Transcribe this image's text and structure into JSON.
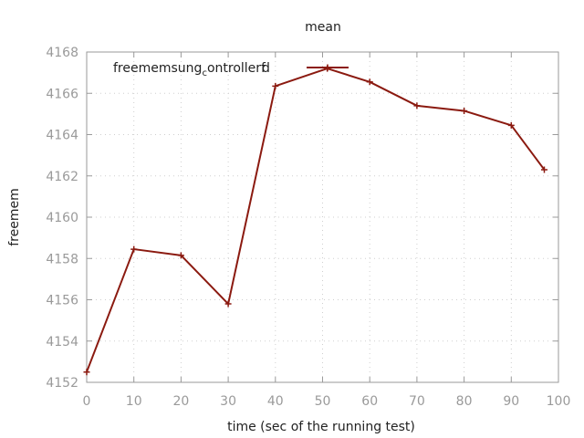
{
  "chart_data": {
    "type": "line",
    "title": "mean",
    "xlabel": "time (sec of the running test)",
    "ylabel": "freemem",
    "xlim": [
      0,
      100
    ],
    "ylim": [
      4152,
      4168
    ],
    "xticks": [
      0,
      10,
      20,
      30,
      40,
      50,
      60,
      70,
      80,
      90,
      100
    ],
    "yticks": [
      4152,
      4154,
      4156,
      4158,
      4160,
      4162,
      4164,
      4166,
      4168
    ],
    "grid": true,
    "legend_position": "top-left",
    "series": [
      {
        "name_parts": [
          "freemem",
          "sung",
          "c",
          "ontrollerf",
          "d"
        ],
        "color": "#8b1a10",
        "marker": "plus",
        "x": [
          0,
          10,
          20,
          30,
          40,
          51,
          60,
          70,
          80,
          90,
          97
        ],
        "y": [
          4152.5,
          4158.45,
          4158.15,
          4155.8,
          4166.35,
          4167.2,
          4166.55,
          4165.4,
          4165.15,
          4164.45,
          4162.3
        ]
      }
    ]
  }
}
